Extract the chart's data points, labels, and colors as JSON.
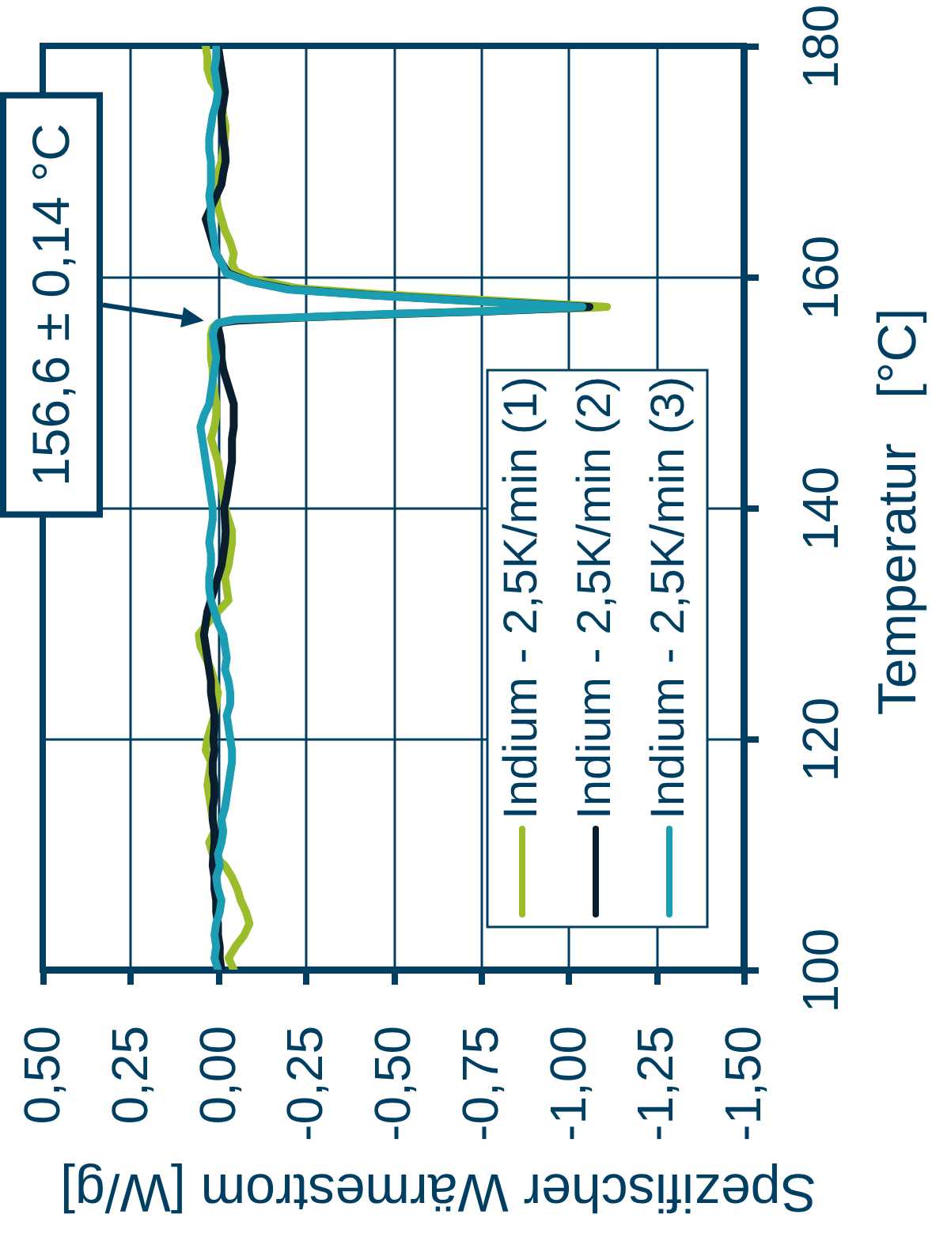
{
  "chart_data": {
    "type": "line",
    "xlabel": "Spezifischer Wärmestrom [W/g]",
    "ylabel": "Temperatur   [°C]",
    "xlim": [
      0.5,
      -1.5
    ],
    "xticks": [
      {
        "value": 0.5,
        "label": "0,50"
      },
      {
        "value": 0.25,
        "label": "0,25"
      },
      {
        "value": 0,
        "label": "0,00"
      },
      {
        "value": -0.25,
        "label": "-0,25"
      },
      {
        "value": -0.5,
        "label": "-0,50"
      },
      {
        "value": -0.75,
        "label": "-0,75"
      },
      {
        "value": -1,
        "label": "-1,00"
      },
      {
        "value": -1.25,
        "label": "-1,25"
      },
      {
        "value": -1.5,
        "label": "-1,50"
      }
    ],
    "ylim": [
      100,
      180
    ],
    "yticks": [
      100,
      120,
      140,
      160,
      180
    ],
    "grid": true,
    "legend": "bottom right",
    "line_style": "solid",
    "annotations": [
      {
        "text": "156,6 ± 0,14 °C",
        "x": 0.04,
        "y": 156.2
      }
    ],
    "series": [
      {
        "name": "Indium - 2,5K/min (1)",
        "color": "#9bbd2c",
        "x": [
          -0.045,
          -0.03,
          -0.05,
          -0.075,
          -0.09,
          -0.08,
          -0.065,
          -0.055,
          -0.04,
          -0.02,
          0.015,
          0.025,
          0.01,
          0.015,
          0.02,
          0.025,
          0.03,
          0.025,
          0.02,
          0.035,
          0.03,
          0.02,
          0.01,
          0.005,
          0.0,
          0.01,
          0.02,
          0.035,
          0.05,
          0.055,
          0.03,
          0.0,
          -0.03,
          -0.025,
          -0.02,
          -0.03,
          -0.035,
          -0.04,
          -0.04,
          -0.03,
          -0.02,
          -0.015,
          -0.01,
          -0.005,
          0.0,
          0.01,
          0.02,
          0.01,
          0.005,
          0.005,
          0.01,
          0.015,
          0.015,
          0.02,
          0.02,
          0.02,
          0.015,
          0.0,
          -0.05,
          -0.27,
          -0.54,
          -0.8,
          -1.05,
          -1.11,
          -0.76,
          -0.46,
          -0.23,
          -0.1,
          -0.05,
          -0.04,
          -0.045,
          -0.035,
          -0.02,
          -0.01,
          0.0,
          0.005,
          0.005,
          0.0,
          -0.01,
          -0.015,
          -0.02,
          -0.022,
          -0.015,
          -0.01,
          0.0,
          0.02,
          0.03,
          0.03,
          0.035
        ],
        "values": [
          100,
          101,
          102,
          103,
          104,
          105,
          106,
          107,
          108,
          109,
          110,
          111,
          112,
          113,
          114,
          115,
          116,
          117,
          118,
          119,
          120,
          121,
          122,
          123,
          124,
          125,
          126,
          127,
          128,
          129,
          130,
          131,
          132,
          133,
          134,
          135,
          136,
          137,
          138,
          139,
          140,
          141,
          142,
          143,
          144,
          145,
          146,
          147,
          148,
          149,
          150,
          151,
          152,
          153,
          154,
          155,
          155.6,
          156.0,
          156.3,
          156.5,
          156.8,
          157.1,
          157.3,
          157.4,
          158.0,
          158.5,
          159.0,
          159.8,
          160.5,
          161.2,
          162,
          163,
          164,
          165,
          166,
          167,
          168,
          169,
          170,
          171,
          172,
          173,
          174,
          175,
          176,
          177,
          178,
          179,
          180
        ]
      },
      {
        "name": "Indium - 2,5K/min (2)",
        "color": "#0a1e2e",
        "x": [
          -0.01,
          -0.005,
          -0.005,
          0.0,
          0.0,
          0.005,
          0.005,
          0.01,
          0.01,
          0.015,
          0.013,
          0.01,
          0.01,
          0.015,
          0.015,
          0.01,
          0.01,
          0.015,
          0.015,
          0.01,
          0.013,
          0.01,
          0.01,
          0.015,
          0.02,
          0.02,
          0.025,
          0.03,
          0.035,
          0.04,
          0.035,
          0.03,
          0.02,
          0.01,
          0.0,
          -0.01,
          -0.015,
          -0.02,
          -0.022,
          -0.02,
          -0.018,
          -0.025,
          -0.03,
          -0.035,
          -0.04,
          -0.04,
          -0.04,
          -0.045,
          -0.045,
          -0.045,
          -0.035,
          -0.025,
          -0.015,
          -0.01,
          -0.01,
          -0.005,
          0.0,
          -0.005,
          -0.05,
          -0.26,
          -0.52,
          -0.77,
          -1.0,
          -1.06,
          -0.74,
          -0.44,
          -0.21,
          -0.09,
          -0.03,
          -0.01,
          0.005,
          0.015,
          0.025,
          0.035,
          0.02,
          0.005,
          -0.01,
          -0.015,
          -0.022,
          -0.02,
          -0.015,
          -0.012,
          -0.01,
          -0.015,
          -0.02,
          -0.015,
          -0.01,
          -0.005,
          0.0
        ],
        "values": [
          100,
          101,
          102,
          103,
          104,
          105,
          106,
          107,
          108,
          109,
          110,
          111,
          112,
          113,
          114,
          115,
          116,
          117,
          118,
          119,
          120,
          121,
          122,
          123,
          124,
          125,
          126,
          127,
          128,
          129,
          130,
          131,
          132,
          133,
          134,
          135,
          136,
          137,
          138,
          139,
          140,
          141,
          142,
          143,
          144,
          145,
          146,
          147,
          148,
          149,
          150,
          151,
          152,
          153,
          154,
          155,
          155.6,
          156.0,
          156.2,
          156.5,
          156.8,
          157.0,
          157.3,
          157.4,
          157.9,
          158.4,
          158.9,
          159.6,
          160.3,
          161.2,
          162,
          163,
          164,
          165,
          166,
          167,
          168,
          169,
          170,
          171,
          172,
          173,
          174,
          175,
          176,
          177,
          178,
          179,
          180
        ]
      },
      {
        "name": "Indium - 2,5K/min (3)",
        "color": "#1b9db3",
        "x": [
          0.0,
          0.01,
          0.005,
          0.01,
          0.005,
          -0.005,
          -0.01,
          0.0,
          0.005,
          -0.005,
          0.0,
          -0.01,
          -0.015,
          -0.01,
          -0.02,
          -0.025,
          -0.03,
          -0.035,
          -0.04,
          -0.04,
          -0.035,
          -0.03,
          -0.025,
          -0.035,
          -0.035,
          -0.03,
          -0.02,
          -0.025,
          -0.02,
          -0.015,
          0.0,
          0.01,
          0.02,
          0.025,
          0.025,
          0.02,
          0.02,
          0.025,
          0.02,
          0.015,
          0.015,
          0.02,
          0.025,
          0.03,
          0.035,
          0.04,
          0.045,
          0.05,
          0.04,
          0.025,
          0.02,
          0.015,
          0.01,
          0.005,
          0.01,
          0.015,
          0.01,
          0.0,
          -0.05,
          -0.25,
          -0.5,
          -0.75,
          -0.98,
          -1.04,
          -0.73,
          -0.43,
          -0.2,
          -0.087,
          -0.024,
          -0.01,
          0.005,
          0.01,
          0.015,
          0.02,
          0.02,
          0.025,
          0.02,
          0.02,
          0.02,
          0.025,
          0.025,
          0.02,
          0.015,
          0.005,
          0.0,
          0.005,
          0.01,
          0.005,
          0.005
        ],
        "values": [
          100,
          101,
          102,
          103,
          104,
          105,
          106,
          107,
          108,
          109,
          110,
          111,
          112,
          113,
          114,
          115,
          116,
          117,
          118,
          119,
          120,
          121,
          122,
          123,
          124,
          125,
          126,
          127,
          128,
          129,
          130,
          131,
          132,
          133,
          134,
          135,
          136,
          137,
          138,
          139,
          140,
          141,
          142,
          143,
          144,
          145,
          146,
          147,
          148,
          149,
          150,
          151,
          152,
          153,
          154,
          155,
          155.6,
          156.0,
          156.3,
          156.5,
          156.8,
          157.0,
          157.3,
          157.4,
          157.9,
          158.4,
          158.9,
          159.6,
          160.3,
          161.2,
          162,
          163,
          164,
          165,
          166,
          167,
          168,
          169,
          170,
          171,
          172,
          173,
          174,
          175,
          176,
          177,
          178,
          179,
          180
        ]
      }
    ]
  }
}
